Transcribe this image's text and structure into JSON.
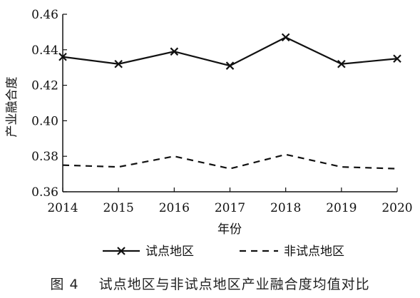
{
  "caption": {
    "figure_label": "图 4",
    "text": "试点地区与非试点地区产业融合度均值对比"
  },
  "chart_data": {
    "type": "line",
    "title": "",
    "xlabel": "年份",
    "ylabel": "产业融合度",
    "x": [
      2014,
      2015,
      2016,
      2017,
      2018,
      2019,
      2020
    ],
    "ylim": [
      0.36,
      0.46
    ],
    "yticks": [
      0.36,
      0.38,
      0.4,
      0.42,
      0.44,
      0.46
    ],
    "ytick_labels": [
      "0.36",
      "0.38",
      "0.40",
      "0.42",
      "0.44",
      "0.46"
    ],
    "grid": false,
    "legend_position": "bottom",
    "series": [
      {
        "name": "试点地区",
        "style": "solid",
        "marker": "x",
        "color": "#111111",
        "values": [
          0.436,
          0.432,
          0.439,
          0.431,
          0.447,
          0.432,
          0.435
        ]
      },
      {
        "name": "非试点地区",
        "style": "dashed",
        "marker": "none",
        "color": "#111111",
        "values": [
          0.375,
          0.374,
          0.38,
          0.373,
          0.381,
          0.374,
          0.373
        ]
      }
    ]
  }
}
